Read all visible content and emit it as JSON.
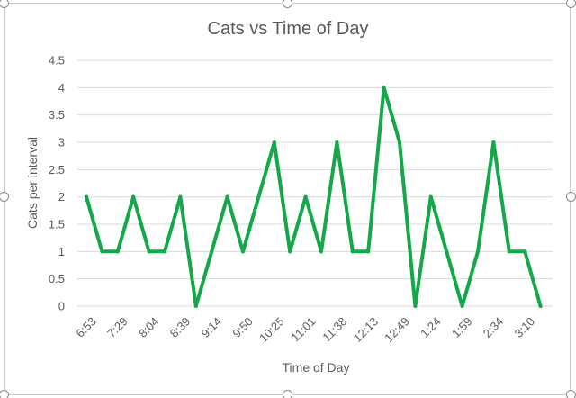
{
  "chart_data": {
    "type": "line",
    "title": "Cats vs Time of Day",
    "xlabel": "Time of Day",
    "ylabel": "Cats per interval",
    "ylim": [
      0,
      4.5
    ],
    "y_ticks": [
      "0",
      "0.5",
      "1",
      "1.5",
      "2",
      "2.5",
      "3",
      "3.5",
      "4",
      "4.5"
    ],
    "x_tick_labels": [
      "6:53",
      "7:29",
      "8:04",
      "8:39",
      "9:14",
      "9:50",
      "10:25",
      "11:01",
      "11:38",
      "12:13",
      "12:49",
      "1:24",
      "1:59",
      "2:34",
      "3:10"
    ],
    "grid": true,
    "legend": "none",
    "series": [
      {
        "color": "#14a84b",
        "values": [
          2,
          1,
          1,
          2,
          1,
          1,
          2,
          0,
          1,
          2,
          1,
          2,
          3,
          1,
          2,
          1,
          3,
          1,
          1,
          4,
          3,
          0,
          2,
          1,
          0,
          1,
          3,
          1,
          1,
          0
        ]
      }
    ]
  }
}
